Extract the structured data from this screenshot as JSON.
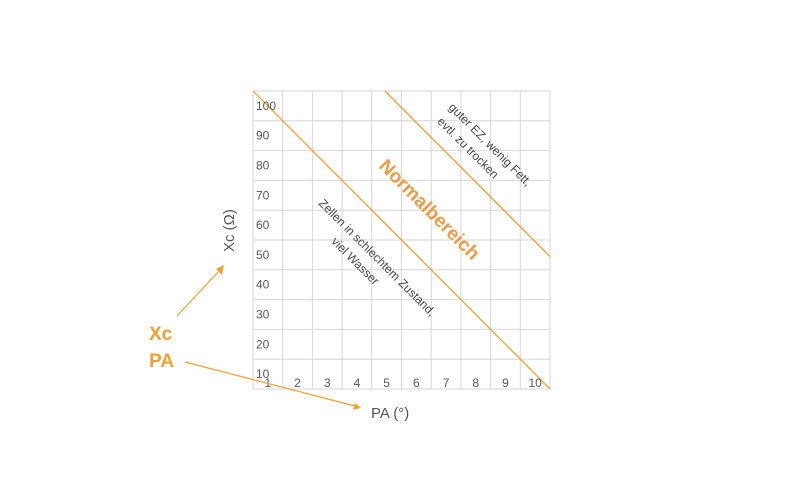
{
  "colors": {
    "accent": "#f0a030",
    "normal_text": "#ee9a45",
    "grid": "#d6d6d6",
    "text": "#555555"
  },
  "chart_data": {
    "type": "line",
    "title": "",
    "xlabel": "PA (°)",
    "ylabel": "Xc (Ω)",
    "xlim": [
      1,
      10
    ],
    "ylim": [
      10,
      100
    ],
    "x_ticks": [
      "1",
      "2",
      "3",
      "4",
      "5",
      "6",
      "7",
      "8",
      "9",
      "10"
    ],
    "y_ticks": [
      "10",
      "20",
      "30",
      "40",
      "50",
      "60",
      "70",
      "80",
      "90",
      "100"
    ],
    "grid": true,
    "series": [
      {
        "x": [
          1,
          10
        ],
        "y": [
          100,
          10
        ]
      },
      {
        "x": [
          5,
          10
        ],
        "y": [
          100,
          50
        ]
      }
    ],
    "annotations": {
      "lower": [
        "Zellen in schlechtem Zustand,",
        "viel Wasser"
      ],
      "normal": "Normalbereich",
      "upper": [
        "guter EZ, wenig Fett,",
        "evtl. zu trocken"
      ]
    },
    "legend_labels": [
      "Xc",
      "PA"
    ]
  }
}
